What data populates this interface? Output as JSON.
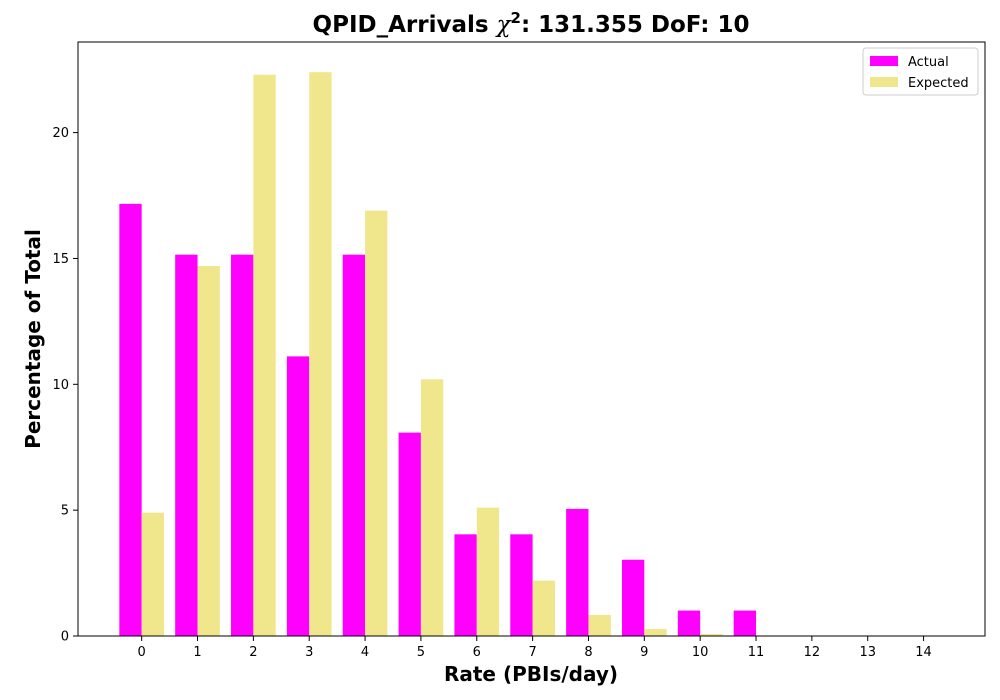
{
  "chart_data": {
    "type": "bar",
    "title": {
      "prefix": "QPID_Arrivals ",
      "chi": "χ",
      "sup": "2",
      "suffix": ": 131.355 DoF: 10"
    },
    "xlabel": "Rate (PBIs/day)",
    "ylabel": "Percentage of Total",
    "categories": [
      0,
      1,
      2,
      3,
      4,
      5,
      6,
      7,
      8,
      9,
      10,
      11,
      12,
      13,
      14
    ],
    "x_ticks": [
      "0",
      "1",
      "2",
      "3",
      "4",
      "5",
      "6",
      "7",
      "8",
      "9",
      "10",
      "11",
      "12",
      "13",
      "14"
    ],
    "y_ticks": [
      0,
      5,
      10,
      15,
      20
    ],
    "ylim": [
      0,
      23.6
    ],
    "xlim": [
      -1.14,
      15.1
    ],
    "series": [
      {
        "name": "Actual",
        "color": "#ff00ff",
        "values": [
          17.17,
          15.15,
          15.15,
          11.11,
          15.15,
          8.08,
          4.04,
          4.04,
          5.05,
          3.03,
          1.01,
          1.01,
          0,
          0,
          0
        ]
      },
      {
        "name": "Expected",
        "color": "#f0e68c",
        "values": [
          4.9,
          14.7,
          22.3,
          22.4,
          16.9,
          10.2,
          5.1,
          2.2,
          0.84,
          0.28,
          0.08,
          0.02,
          0.005,
          0.001,
          0.0002
        ]
      }
    ],
    "legend_placement": "top-right",
    "grid": false
  }
}
